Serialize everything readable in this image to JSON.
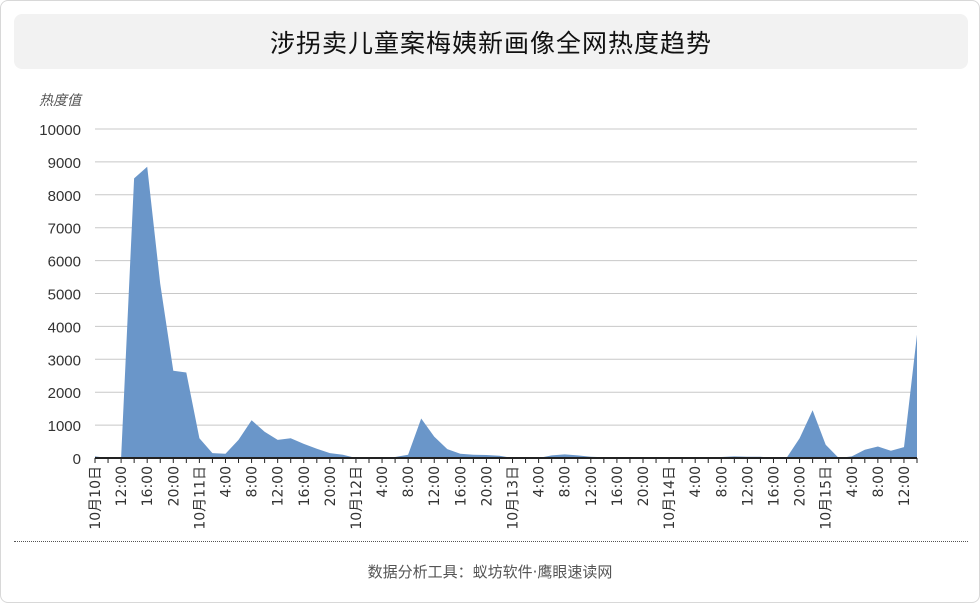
{
  "title": "涉拐卖儿童案梅姨新画像全网热度趋势",
  "footer": "数据分析工具：蚁坊软件·鹰眼速读网",
  "chart_data": {
    "type": "area",
    "ylabel": "热度值",
    "xlabel": "",
    "ylim": [
      0,
      10000
    ],
    "yticks": [
      0,
      1000,
      2000,
      3000,
      4000,
      5000,
      6000,
      7000,
      8000,
      9000,
      10000
    ],
    "grid": true,
    "legend": "none",
    "color": "#6a96c9",
    "x_tick_labels": [
      "10月10日",
      "12:00",
      "16:00",
      "20:00",
      "10月11日",
      "4:00",
      "8:00",
      "12:00",
      "16:00",
      "20:00",
      "10月12日",
      "4:00",
      "8:00",
      "12:00",
      "16:00",
      "20:00",
      "10月13日",
      "4:00",
      "8:00",
      "12:00",
      "16:00",
      "20:00",
      "10月14日",
      "4:00",
      "8:00",
      "12:00",
      "16:00",
      "20:00",
      "10月15日",
      "4:00",
      "8:00",
      "12:00"
    ],
    "x_tick_hours": [
      8,
      12,
      16,
      20,
      24,
      28,
      32,
      36,
      40,
      44,
      48,
      52,
      56,
      60,
      64,
      68,
      72,
      76,
      80,
      84,
      88,
      92,
      96,
      100,
      104,
      108,
      112,
      116,
      120,
      124,
      128,
      132
    ],
    "x_range_hours": [
      8,
      134
    ],
    "series": [
      {
        "x_hours": [
          8,
          10,
          12,
          14,
          16,
          18,
          20,
          22,
          24,
          26,
          28,
          30,
          32,
          34,
          36,
          38,
          40,
          42,
          44,
          46,
          48,
          50,
          52,
          54,
          56,
          58,
          60,
          62,
          64,
          66,
          68,
          70,
          72,
          74,
          76,
          78,
          80,
          82,
          84,
          86,
          88,
          90,
          92,
          94,
          96,
          98,
          100,
          102,
          104,
          106,
          108,
          110,
          112,
          114,
          116,
          118,
          120,
          122,
          124,
          126,
          128,
          130,
          132,
          134
        ],
        "values": [
          50,
          0,
          0,
          8500,
          8850,
          5300,
          2650,
          2600,
          600,
          150,
          130,
          550,
          1150,
          800,
          550,
          600,
          430,
          280,
          150,
          100,
          0,
          0,
          0,
          30,
          100,
          1200,
          650,
          270,
          130,
          100,
          90,
          70,
          0,
          0,
          0,
          80,
          110,
          80,
          40,
          20,
          10,
          0,
          0,
          0,
          0,
          0,
          0,
          0,
          30,
          50,
          40,
          40,
          0,
          0,
          600,
          1450,
          400,
          0,
          50,
          250,
          350,
          220,
          330,
          3750
        ]
      }
    ]
  }
}
